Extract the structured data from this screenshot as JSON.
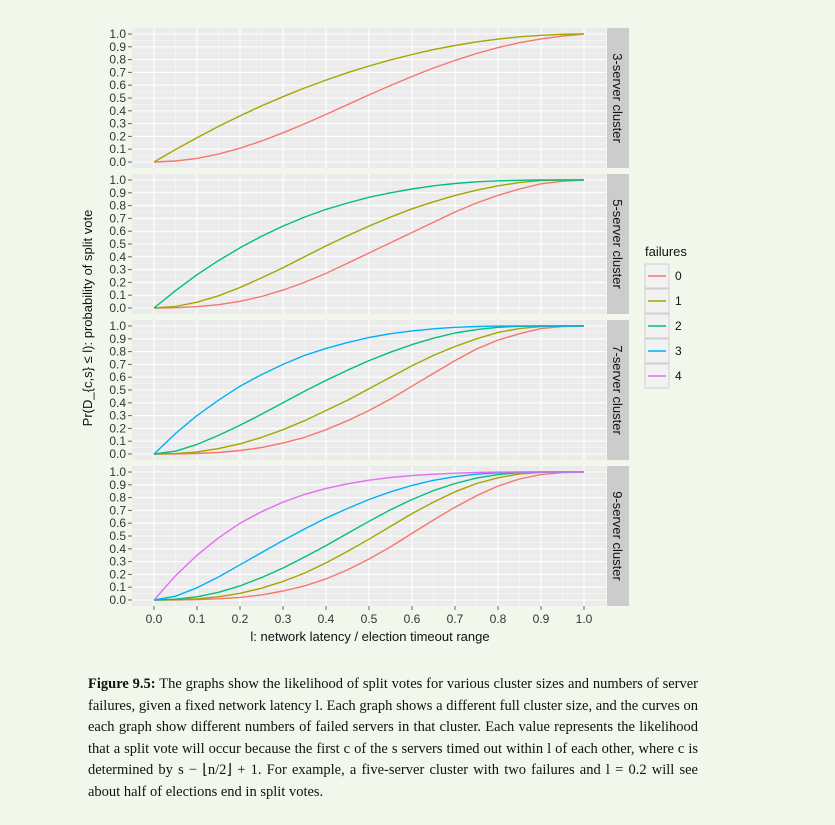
{
  "chart_data": {
    "type": "line",
    "xlabel": "l: network latency / election timeout range",
    "ylabel": "Pr(D_{c,s} ≤ l): probability of split vote",
    "xlim": [
      0,
      1
    ],
    "ylim": [
      0,
      1
    ],
    "x_ticks": [
      "0.0",
      "0.1",
      "0.2",
      "0.3",
      "0.4",
      "0.5",
      "0.6",
      "0.7",
      "0.8",
      "0.9",
      "1.0"
    ],
    "y_ticks": [
      "0.0",
      "0.1",
      "0.2",
      "0.3",
      "0.4",
      "0.5",
      "0.6",
      "0.7",
      "0.8",
      "0.9",
      "1.0"
    ],
    "grid": true,
    "legend": {
      "title": "failures",
      "position": "right"
    },
    "series_colors": {
      "0": "#f8766d",
      "1": "#a3a500",
      "2": "#00bf7d",
      "3": "#00b0f6",
      "4": "#e76bf3"
    },
    "x": [
      0,
      0.05,
      0.1,
      0.15,
      0.2,
      0.25,
      0.3,
      0.35,
      0.4,
      0.45,
      0.5,
      0.55,
      0.6,
      0.65,
      0.7,
      0.75,
      0.8,
      0.85,
      0.9,
      0.95,
      1.0
    ],
    "panels": [
      {
        "strip": "3-server cluster",
        "series": [
          {
            "name": "0",
            "values": [
              0,
              0.0075,
              0.028,
              0.062,
              0.108,
              0.164,
              0.228,
              0.298,
              0.372,
              0.448,
              0.524,
              0.598,
              0.668,
              0.734,
              0.794,
              0.848,
              0.894,
              0.932,
              0.962,
              0.984,
              1.0
            ]
          },
          {
            "name": "1",
            "values": [
              0,
              0.098,
              0.19,
              0.278,
              0.36,
              0.438,
              0.51,
              0.578,
              0.64,
              0.698,
              0.75,
              0.798,
              0.84,
              0.878,
              0.91,
              0.938,
              0.96,
              0.978,
              0.99,
              0.998,
              1.0
            ]
          }
        ]
      },
      {
        "strip": "5-server cluster",
        "series": [
          {
            "name": "0",
            "values": [
              0,
              0.002,
              0.01,
              0.026,
              0.052,
              0.09,
              0.14,
              0.2,
              0.27,
              0.35,
              0.43,
              0.51,
              0.59,
              0.67,
              0.75,
              0.82,
              0.88,
              0.93,
              0.97,
              0.99,
              1.0
            ]
          },
          {
            "name": "1",
            "values": [
              0,
              0.012,
              0.045,
              0.095,
              0.16,
              0.235,
              0.315,
              0.4,
              0.485,
              0.565,
              0.64,
              0.71,
              0.775,
              0.83,
              0.88,
              0.92,
              0.955,
              0.98,
              0.995,
              1.0,
              1.0
            ]
          },
          {
            "name": "2",
            "values": [
              0,
              0.135,
              0.26,
              0.37,
              0.47,
              0.56,
              0.64,
              0.71,
              0.77,
              0.82,
              0.865,
              0.9,
              0.93,
              0.955,
              0.973,
              0.986,
              0.994,
              0.998,
              1.0,
              1.0,
              1.0
            ]
          }
        ]
      },
      {
        "strip": "7-server cluster",
        "series": [
          {
            "name": "0",
            "values": [
              0,
              0.001,
              0.004,
              0.012,
              0.027,
              0.05,
              0.085,
              0.13,
              0.19,
              0.26,
              0.34,
              0.43,
              0.53,
              0.63,
              0.73,
              0.82,
              0.89,
              0.94,
              0.98,
              0.995,
              1.0
            ]
          },
          {
            "name": "1",
            "values": [
              0,
              0.003,
              0.016,
              0.042,
              0.08,
              0.13,
              0.19,
              0.26,
              0.34,
              0.42,
              0.51,
              0.6,
              0.69,
              0.77,
              0.84,
              0.9,
              0.95,
              0.98,
              0.995,
              1.0,
              1.0
            ]
          },
          {
            "name": "2",
            "values": [
              0,
              0.022,
              0.075,
              0.145,
              0.225,
              0.31,
              0.4,
              0.49,
              0.575,
              0.655,
              0.73,
              0.795,
              0.855,
              0.905,
              0.945,
              0.972,
              0.99,
              0.998,
              1.0,
              1.0,
              1.0
            ]
          },
          {
            "name": "3",
            "values": [
              0,
              0.16,
              0.3,
              0.42,
              0.53,
              0.62,
              0.7,
              0.77,
              0.825,
              0.87,
              0.91,
              0.94,
              0.962,
              0.978,
              0.99,
              0.996,
              0.999,
              1.0,
              1.0,
              1.0,
              1.0
            ]
          }
        ]
      },
      {
        "strip": "9-server cluster",
        "series": [
          {
            "name": "0",
            "values": [
              0,
              0.0005,
              0.003,
              0.009,
              0.02,
              0.04,
              0.07,
              0.11,
              0.165,
              0.235,
              0.32,
              0.415,
              0.52,
              0.625,
              0.725,
              0.815,
              0.89,
              0.945,
              0.98,
              0.995,
              1.0
            ]
          },
          {
            "name": "1",
            "values": [
              0,
              0.002,
              0.009,
              0.025,
              0.052,
              0.092,
              0.145,
              0.21,
              0.29,
              0.38,
              0.475,
              0.575,
              0.675,
              0.765,
              0.845,
              0.91,
              0.955,
              0.985,
              0.997,
              1.0,
              1.0
            ]
          },
          {
            "name": "2",
            "values": [
              0,
              0.006,
              0.025,
              0.06,
              0.11,
              0.175,
              0.25,
              0.335,
              0.425,
              0.52,
              0.615,
              0.705,
              0.785,
              0.855,
              0.91,
              0.952,
              0.98,
              0.995,
              1.0,
              1.0,
              1.0
            ]
          },
          {
            "name": "3",
            "values": [
              0,
              0.03,
              0.095,
              0.18,
              0.275,
              0.37,
              0.465,
              0.555,
              0.64,
              0.715,
              0.785,
              0.845,
              0.895,
              0.935,
              0.963,
              0.983,
              0.994,
              0.999,
              1.0,
              1.0,
              1.0
            ]
          },
          {
            "name": "4",
            "values": [
              0,
              0.19,
              0.35,
              0.485,
              0.6,
              0.69,
              0.765,
              0.825,
              0.872,
              0.908,
              0.936,
              0.957,
              0.972,
              0.983,
              0.991,
              0.996,
              0.999,
              1.0,
              1.0,
              1.0,
              1.0
            ]
          }
        ]
      }
    ]
  },
  "caption": {
    "label": "Figure 9.5:",
    "text": "The graphs show the likelihood of split votes for various cluster sizes and numbers of server failures, given a fixed network latency l. Each graph shows a different full cluster size, and the curves on each graph show different numbers of failed servers in that cluster. Each value represents the likelihood that a split vote will occur because the first c of the s servers timed out within l of each other, where c is determined by s − ⌊n/2⌋ + 1. For example, a five-server cluster with two failures and l = 0.2 will see about half of elections end in split votes."
  }
}
